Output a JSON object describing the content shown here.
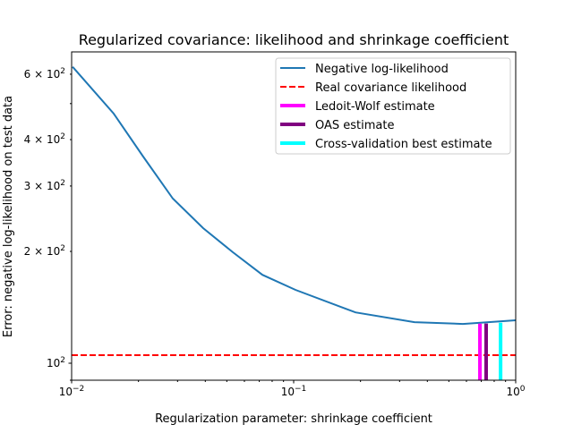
{
  "chart_data": {
    "type": "line",
    "title": "Regularized covariance: likelihood and shrinkage coefficient",
    "xlabel": "Regularization parameter: shrinkage coefficient",
    "ylabel": "Error: negative log-likelihood on test data",
    "xscale": "log",
    "yscale": "log",
    "xlim": [
      0.01,
      1.0
    ],
    "ylim": [
      90,
      689
    ],
    "x_ticks": [
      {
        "value": 0.01,
        "base": "10",
        "exp": "−2"
      },
      {
        "value": 0.1,
        "base": "10",
        "exp": "−1"
      },
      {
        "value": 1,
        "base": "10",
        "exp": "0"
      }
    ],
    "y_ticks": [
      {
        "value": 100,
        "mant": "",
        "exp": "2"
      },
      {
        "value": 200,
        "mant": "2 × ",
        "exp": "2"
      },
      {
        "value": 300,
        "mant": "3 × ",
        "exp": "2"
      },
      {
        "value": 400,
        "mant": "4 × ",
        "exp": "2"
      },
      {
        "value": 600,
        "mant": "6 × ",
        "exp": "2"
      }
    ],
    "grid": false,
    "legend_position": "top-right",
    "series": [
      {
        "name": "Negative log-likelihood",
        "kind": "line",
        "color": "#1f77b4",
        "x": [
          0.0101,
          0.01547,
          0.021,
          0.02855,
          0.0391,
          0.0532,
          0.0723,
          0.1019,
          0.19,
          0.35,
          0.578,
          1.0
        ],
        "y": [
          628,
          470,
          360,
          277.6,
          231,
          199,
          173,
          157.6,
          137,
          129,
          127.6,
          130.5
        ]
      },
      {
        "name": "Real covariance likelihood",
        "kind": "hline",
        "color": "#ff0000",
        "y": 105.1
      },
      {
        "name": "Ledoit-Wolf estimate",
        "kind": "vline",
        "color": "#ff00ff",
        "x": 0.69,
        "ymax": 127.8
      },
      {
        "name": "OAS estimate",
        "kind": "vline",
        "color": "#800080",
        "x": 0.736,
        "ymax": 127.9
      },
      {
        "name": "Cross-validation best estimate",
        "kind": "vline",
        "color": "#00ffff",
        "x": 0.855,
        "ymax": 128.5
      }
    ]
  }
}
